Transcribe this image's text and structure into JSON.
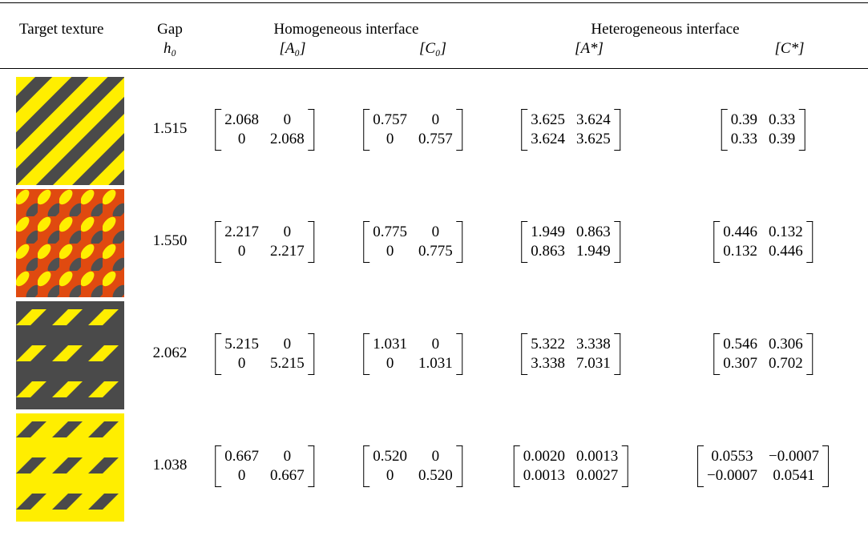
{
  "header": {
    "texture": "Target texture",
    "gap": "Gap",
    "gap_symbol": "h₀",
    "homogeneous": "Homogeneous interface",
    "a0": "[A₀]",
    "c0": "[C₀]",
    "heterogeneous": "Heterogeneous interface",
    "a_star": "[A*]",
    "c_star": "[C*]"
  },
  "table": {
    "rows": [
      {
        "gap": "1.515",
        "a0": [
          [
            "2.068",
            "0"
          ],
          [
            "0",
            "2.068"
          ]
        ],
        "c0": [
          [
            "0.757",
            "0"
          ],
          [
            "0",
            "0.757"
          ]
        ],
        "a_star": [
          [
            "3.625",
            "3.624"
          ],
          [
            "3.624",
            "3.625"
          ]
        ],
        "c_star": [
          [
            "0.39",
            "0.33"
          ],
          [
            "0.33",
            "0.39"
          ]
        ]
      },
      {
        "gap": "1.550",
        "a0": [
          [
            "2.217",
            "0"
          ],
          [
            "0",
            "2.217"
          ]
        ],
        "c0": [
          [
            "0.775",
            "0"
          ],
          [
            "0",
            "0.775"
          ]
        ],
        "a_star": [
          [
            "1.949",
            "0.863"
          ],
          [
            "0.863",
            "1.949"
          ]
        ],
        "c_star": [
          [
            "0.446",
            "0.132"
          ],
          [
            "0.132",
            "0.446"
          ]
        ]
      },
      {
        "gap": "2.062",
        "a0": [
          [
            "5.215",
            "0"
          ],
          [
            "0",
            "5.215"
          ]
        ],
        "c0": [
          [
            "1.031",
            "0"
          ],
          [
            "0",
            "1.031"
          ]
        ],
        "a_star": [
          [
            "5.322",
            "3.338"
          ],
          [
            "3.338",
            "7.031"
          ]
        ],
        "c_star": [
          [
            "0.546",
            "0.306"
          ],
          [
            "0.307",
            "0.702"
          ]
        ]
      },
      {
        "gap": "1.038",
        "a0": [
          [
            "0.667",
            "0"
          ],
          [
            "0",
            "0.667"
          ]
        ],
        "c0": [
          [
            "0.520",
            "0"
          ],
          [
            "0",
            "0.520"
          ]
        ],
        "a_star": [
          [
            "0.0020",
            "0.0013"
          ],
          [
            "0.0013",
            "0.0027"
          ]
        ],
        "c_star": [
          [
            "0.0553",
            "−0.0007"
          ],
          [
            "−0.0007",
            "0.0541"
          ]
        ]
      }
    ]
  }
}
